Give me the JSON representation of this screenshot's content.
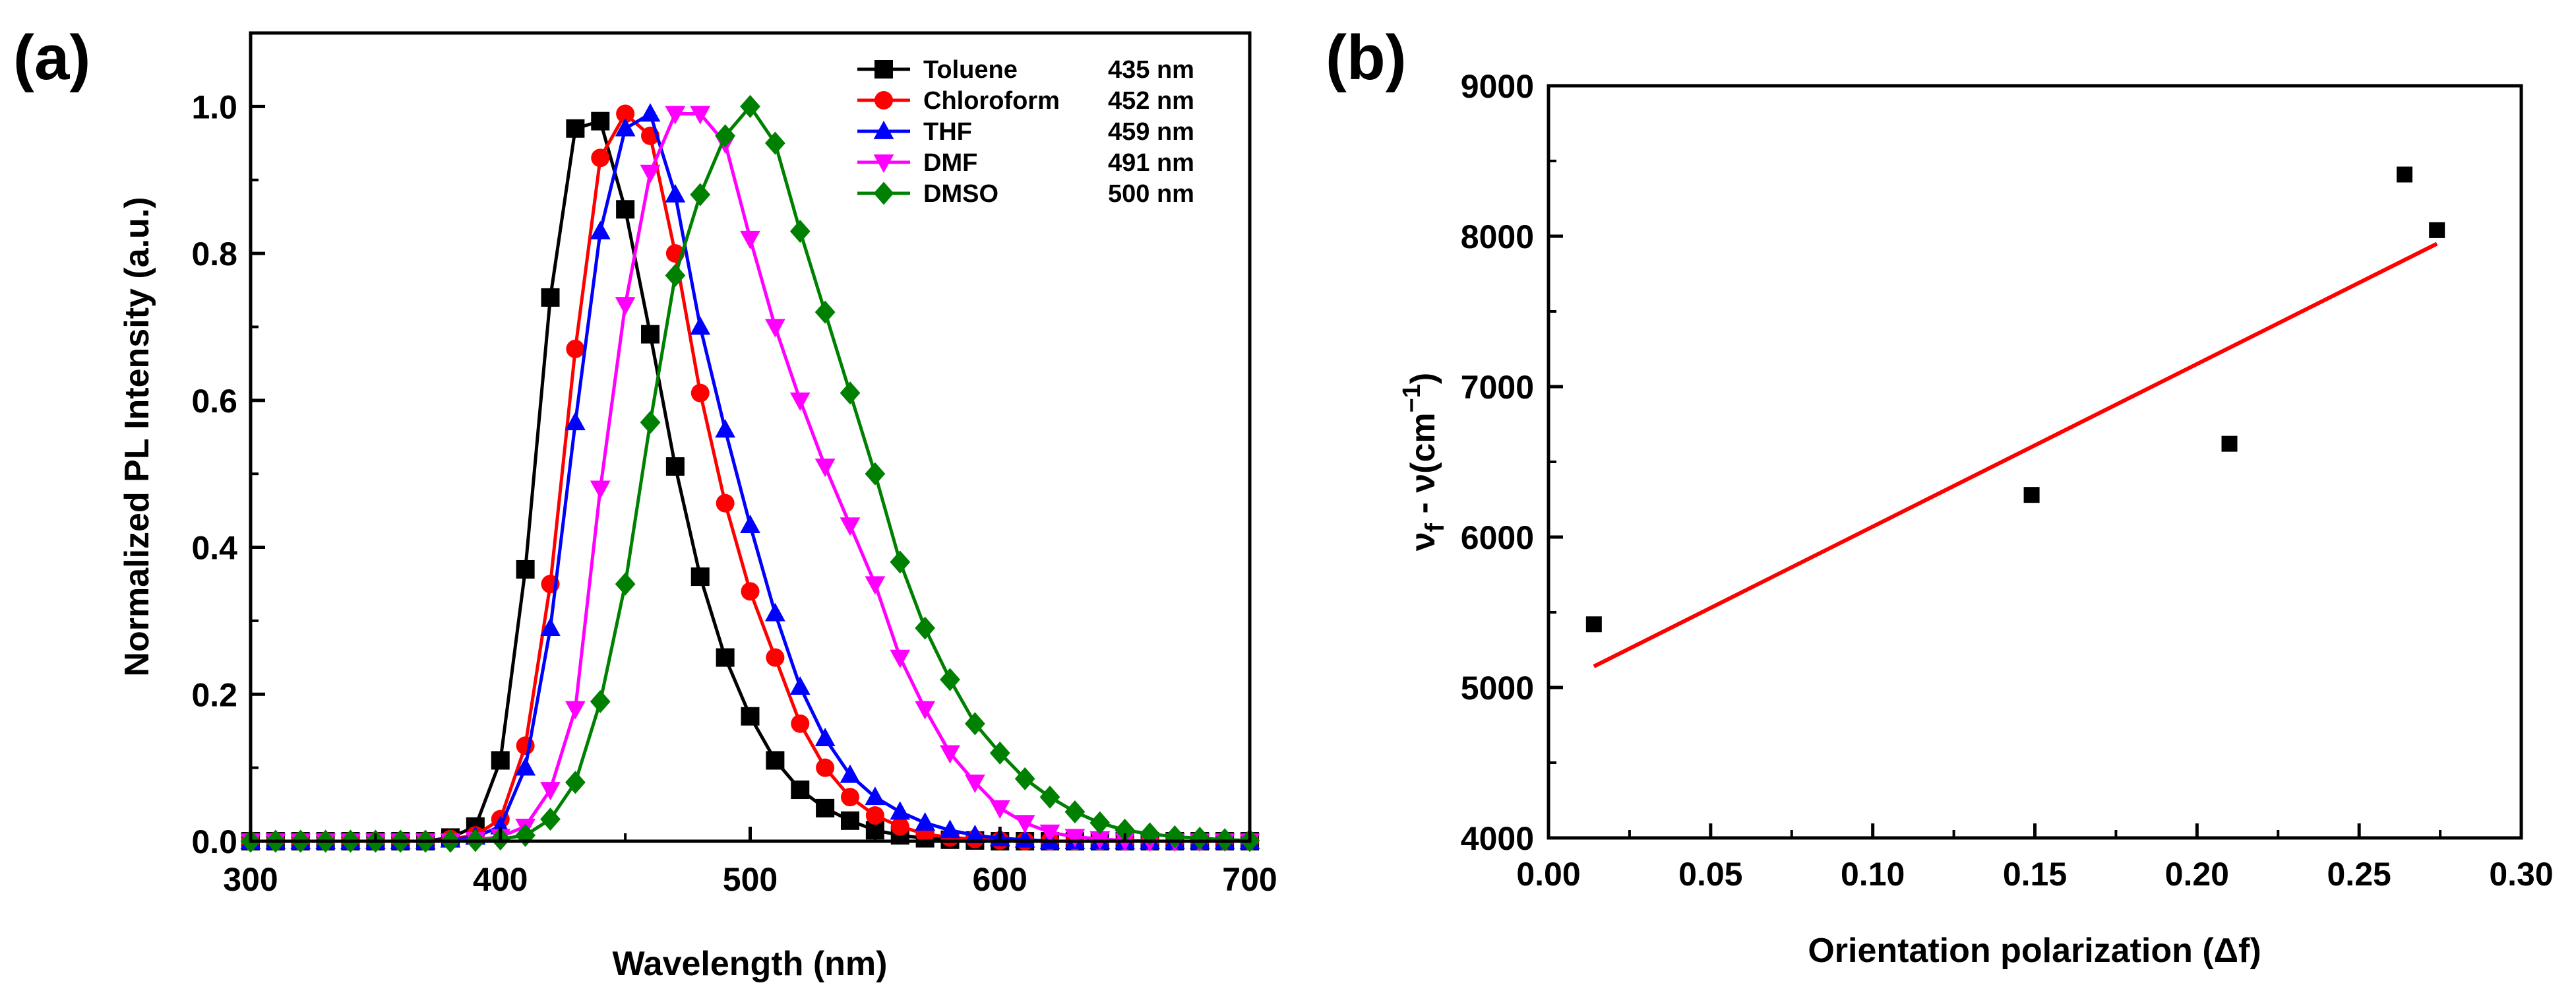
{
  "chart_data": [
    {
      "type": "line",
      "panel": "(a)",
      "title": "",
      "xlabel": "Wavelength (nm)",
      "ylabel": "Normalized PL Intensity (a.u.)",
      "xlim": [
        300,
        700
      ],
      "ylim": [
        0,
        1.1
      ],
      "xticks": [
        300,
        400,
        500,
        600,
        700
      ],
      "yticks": [
        0.0,
        0.2,
        0.4,
        0.6,
        0.8,
        1.0
      ],
      "xtick_labels": [
        "300",
        "400",
        "500",
        "600",
        "700"
      ],
      "ytick_labels": [
        "0.0",
        "0.2",
        "0.4",
        "0.6",
        "0.8",
        "1.0"
      ],
      "legend_position": "top-right",
      "series": [
        {
          "name": "Toluene",
          "peak_label": "435 nm",
          "color": "#000000",
          "marker": "square",
          "x": [
            300,
            310,
            320,
            330,
            340,
            350,
            360,
            370,
            380,
            390,
            400,
            410,
            420,
            430,
            440,
            450,
            460,
            470,
            480,
            490,
            500,
            510,
            520,
            530,
            540,
            550,
            560,
            570,
            580,
            590,
            600,
            610,
            620,
            630,
            640,
            650,
            660,
            670,
            680,
            690,
            700
          ],
          "y": [
            0,
            0,
            0,
            0,
            0,
            0,
            0,
            0,
            0.005,
            0.02,
            0.11,
            0.37,
            0.74,
            0.97,
            0.98,
            0.86,
            0.69,
            0.51,
            0.36,
            0.25,
            0.17,
            0.11,
            0.07,
            0.045,
            0.028,
            0.015,
            0.008,
            0.004,
            0.002,
            0.001,
            0,
            0,
            0,
            0,
            0,
            0,
            0,
            0,
            0,
            0,
            0
          ]
        },
        {
          "name": "Chloroform",
          "peak_label": "452 nm",
          "color": "#ff0000",
          "marker": "circle",
          "x": [
            300,
            310,
            320,
            330,
            340,
            350,
            360,
            370,
            380,
            390,
            400,
            410,
            420,
            430,
            440,
            450,
            460,
            470,
            480,
            490,
            500,
            510,
            520,
            530,
            540,
            550,
            560,
            570,
            580,
            590,
            600,
            610,
            620,
            630,
            640,
            650,
            660,
            670,
            680,
            690,
            700
          ],
          "y": [
            0,
            0,
            0,
            0,
            0,
            0,
            0,
            0,
            0.003,
            0.008,
            0.03,
            0.13,
            0.35,
            0.67,
            0.93,
            0.99,
            0.96,
            0.8,
            0.61,
            0.46,
            0.34,
            0.25,
            0.16,
            0.1,
            0.06,
            0.035,
            0.02,
            0.01,
            0.005,
            0.003,
            0.001,
            0,
            0,
            0,
            0,
            0,
            0,
            0,
            0,
            0,
            0
          ]
        },
        {
          "name": "THF",
          "peak_label": "459 nm",
          "color": "#0000ff",
          "marker": "triangle-up",
          "x": [
            300,
            310,
            320,
            330,
            340,
            350,
            360,
            370,
            380,
            390,
            400,
            410,
            420,
            430,
            440,
            450,
            460,
            470,
            480,
            490,
            500,
            510,
            520,
            530,
            540,
            550,
            560,
            570,
            580,
            590,
            600,
            610,
            620,
            630,
            640,
            650,
            660,
            670,
            680,
            690,
            700
          ],
          "y": [
            0,
            0,
            0,
            0,
            0,
            0,
            0,
            0,
            0.002,
            0.006,
            0.02,
            0.1,
            0.29,
            0.57,
            0.83,
            0.97,
            0.99,
            0.88,
            0.7,
            0.56,
            0.43,
            0.31,
            0.21,
            0.14,
            0.09,
            0.06,
            0.04,
            0.025,
            0.015,
            0.008,
            0.004,
            0.002,
            0,
            0,
            0,
            0,
            0,
            0,
            0,
            0,
            0
          ]
        },
        {
          "name": "DMF",
          "peak_label": "491 nm",
          "color": "#ff00ff",
          "marker": "triangle-down",
          "x": [
            300,
            310,
            320,
            330,
            340,
            350,
            360,
            370,
            380,
            390,
            400,
            410,
            420,
            430,
            440,
            450,
            460,
            470,
            480,
            490,
            500,
            510,
            520,
            530,
            540,
            550,
            560,
            570,
            580,
            590,
            600,
            610,
            620,
            630,
            640,
            650,
            660,
            670,
            680,
            690,
            700
          ],
          "y": [
            0,
            0,
            0,
            0,
            0,
            0,
            0,
            0,
            0,
            0.002,
            0.006,
            0.02,
            0.07,
            0.18,
            0.48,
            0.73,
            0.91,
            0.99,
            0.99,
            0.95,
            0.82,
            0.7,
            0.6,
            0.51,
            0.43,
            0.35,
            0.25,
            0.18,
            0.12,
            0.08,
            0.045,
            0.025,
            0.012,
            0.006,
            0.003,
            0.001,
            0,
            0,
            0,
            0,
            0
          ]
        },
        {
          "name": "DMSO",
          "peak_label": "500 nm",
          "color": "#008000",
          "marker": "diamond",
          "x": [
            300,
            310,
            320,
            330,
            340,
            350,
            360,
            370,
            380,
            390,
            400,
            410,
            420,
            430,
            440,
            450,
            460,
            470,
            480,
            490,
            500,
            510,
            520,
            530,
            540,
            550,
            560,
            570,
            580,
            590,
            600,
            610,
            620,
            630,
            640,
            650,
            660,
            670,
            680,
            690,
            700
          ],
          "y": [
            0,
            0,
            0,
            0,
            0,
            0,
            0,
            0,
            0,
            0.001,
            0.003,
            0.008,
            0.03,
            0.08,
            0.19,
            0.35,
            0.57,
            0.77,
            0.88,
            0.96,
            1.0,
            0.95,
            0.83,
            0.72,
            0.61,
            0.5,
            0.38,
            0.29,
            0.22,
            0.16,
            0.12,
            0.085,
            0.06,
            0.04,
            0.025,
            0.015,
            0.01,
            0.006,
            0.004,
            0.002,
            0.001
          ]
        }
      ]
    },
    {
      "type": "scatter",
      "panel": "(b)",
      "title": "",
      "xlabel": "Orientation polarization (Δf)",
      "ylabel_main": "ν",
      "ylabel_sub": "f",
      "ylabel_rest": " - ν(cm",
      "ylabel_sup": "−1",
      "ylabel_end": ")",
      "xlim": [
        0.0,
        0.3
      ],
      "ylim": [
        4000,
        9000
      ],
      "xticks": [
        0.0,
        0.05,
        0.1,
        0.15,
        0.2,
        0.25,
        0.3
      ],
      "yticks": [
        4000,
        5000,
        6000,
        7000,
        8000,
        9000
      ],
      "xtick_labels": [
        "0.00",
        "0.05",
        "0.10",
        "0.15",
        "0.20",
        "0.25",
        "0.30"
      ],
      "ytick_labels": [
        "4000",
        "5000",
        "6000",
        "7000",
        "8000",
        "9000"
      ],
      "points": {
        "x": [
          0.014,
          0.149,
          0.21,
          0.264,
          0.274
        ],
        "y": [
          5420,
          6280,
          6620,
          8410,
          8040
        ],
        "color": "#000000",
        "marker": "square"
      },
      "fit_line": {
        "x": [
          0.014,
          0.274
        ],
        "y": [
          5140,
          7950
        ],
        "color": "#ff0000"
      }
    }
  ]
}
